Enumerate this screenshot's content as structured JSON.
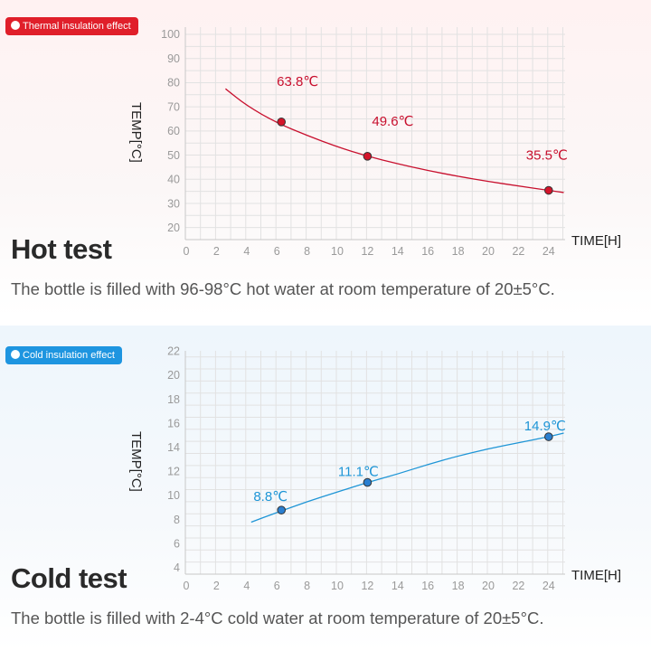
{
  "hot": {
    "badge": "Thermal insulation effect",
    "title": "Hot test",
    "description": "The bottle is filled with 96-98°C hot water at room temperature of 20±5°C."
  },
  "cold": {
    "badge": "Cold insulation effect",
    "title": "Cold test",
    "description": "The bottle is filled with 2-4°C cold water at room temperature of 20±5°C."
  },
  "chart_data": [
    {
      "type": "line",
      "title": "Thermal insulation effect",
      "xlabel": "TIME[H]",
      "ylabel": "TEMP[°C]",
      "x_ticks": [
        0,
        2,
        4,
        6,
        8,
        10,
        12,
        14,
        16,
        18,
        20,
        22,
        24
      ],
      "y_ticks": [
        20,
        30,
        40,
        50,
        60,
        70,
        80,
        90,
        100
      ],
      "xlim": [
        0,
        25
      ],
      "ylim": [
        20,
        100
      ],
      "grid": true,
      "color": "#c8102e",
      "curve": {
        "x": [
          2.6,
          4,
          6,
          8,
          10,
          12,
          14,
          16,
          18,
          20,
          22,
          24,
          25
        ],
        "y": [
          77.5,
          70.5,
          63.4,
          58.2,
          53.5,
          49.6,
          46.5,
          43.7,
          41.3,
          39.2,
          37.3,
          35.5,
          34.6
        ]
      },
      "points": [
        {
          "x": 6.3,
          "y": 63.8,
          "label": "63.8℃"
        },
        {
          "x": 12,
          "y": 49.6,
          "label": "49.6℃"
        },
        {
          "x": 24,
          "y": 35.5,
          "label": "35.5℃"
        }
      ]
    },
    {
      "type": "line",
      "title": "Cold insulation effect",
      "xlabel": "TIME[H]",
      "ylabel": "TEMP[°C]",
      "x_ticks": [
        0,
        2,
        4,
        6,
        8,
        10,
        12,
        14,
        16,
        18,
        20,
        22,
        24
      ],
      "y_ticks": [
        4,
        6,
        8,
        10,
        12,
        14,
        16,
        18,
        20,
        22
      ],
      "xlim": [
        0,
        25
      ],
      "ylim": [
        4,
        22
      ],
      "grid": true,
      "color": "#1e95d6",
      "curve": {
        "x": [
          4.3,
          6,
          8,
          10,
          12,
          14,
          16,
          18,
          20,
          22,
          24,
          25
        ],
        "y": [
          7.8,
          8.6,
          9.5,
          10.3,
          11.1,
          11.8,
          12.6,
          13.3,
          13.9,
          14.4,
          14.9,
          15.2
        ]
      },
      "points": [
        {
          "x": 6.3,
          "y": 8.8,
          "label": "8.8℃"
        },
        {
          "x": 12,
          "y": 11.1,
          "label": "11.1℃"
        },
        {
          "x": 24,
          "y": 14.9,
          "label": "14.9℃"
        }
      ]
    }
  ]
}
